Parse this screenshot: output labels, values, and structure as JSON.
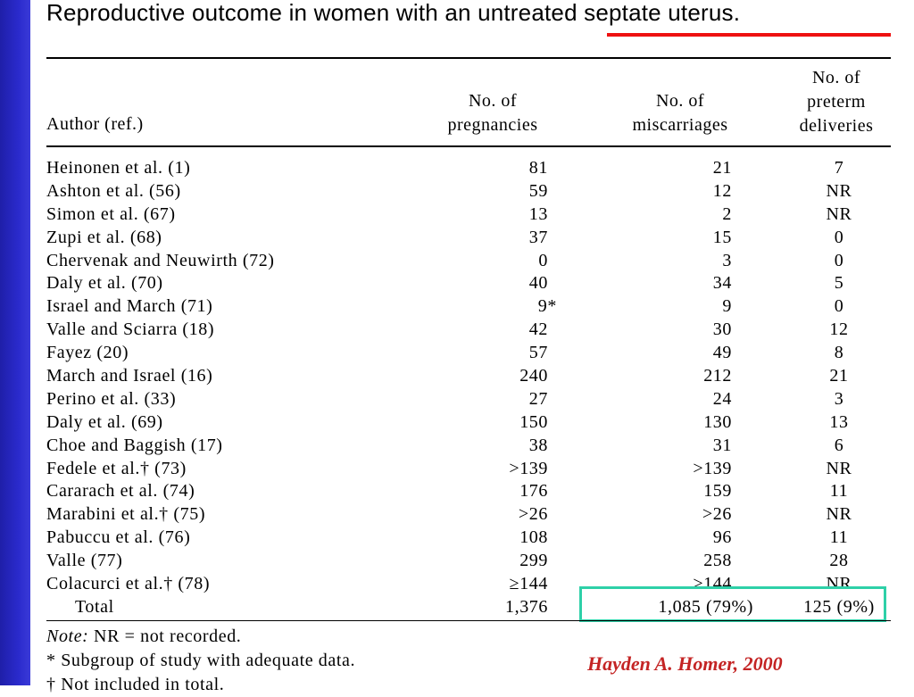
{
  "title": "Reproductive outcome in women with an untreated septate uterus.",
  "headers": {
    "author": "Author (ref.)",
    "pregnancies_line1": "No. of",
    "pregnancies_line2": "pregnancies",
    "miscarriages_line1": "No. of",
    "miscarriages_line2": "miscarriages",
    "preterm_line1": "No. of",
    "preterm_line2": "preterm",
    "preterm_line3": "deliveries"
  },
  "rows": [
    {
      "author": "Heinonen et al. (1)",
      "pregnancies": "81",
      "miscarriages": "21",
      "preterm": "7"
    },
    {
      "author": "Ashton et al. (56)",
      "pregnancies": "59",
      "miscarriages": "12",
      "preterm": "NR"
    },
    {
      "author": "Simon et al. (67)",
      "pregnancies": "13",
      "miscarriages": "2",
      "preterm": "NR"
    },
    {
      "author": "Zupi et al. (68)",
      "pregnancies": "37",
      "miscarriages": "15",
      "preterm": "0"
    },
    {
      "author": "Chervenak and Neuwirth (72)",
      "pregnancies": "0",
      "miscarriages": "3",
      "preterm": "0"
    },
    {
      "author": "Daly et al. (70)",
      "pregnancies": "40",
      "miscarriages": "34",
      "preterm": "5"
    },
    {
      "author": "Israel and March (71)",
      "pregnancies": "9*",
      "miscarriages": "9",
      "preterm": "0"
    },
    {
      "author": "Valle and Sciarra (18)",
      "pregnancies": "42",
      "miscarriages": "30",
      "preterm": "12"
    },
    {
      "author": "Fayez (20)",
      "pregnancies": "57",
      "miscarriages": "49",
      "preterm": "8"
    },
    {
      "author": "March and Israel (16)",
      "pregnancies": "240",
      "miscarriages": "212",
      "preterm": "21"
    },
    {
      "author": "Perino et al. (33)",
      "pregnancies": "27",
      "miscarriages": "24",
      "preterm": "3"
    },
    {
      "author": "Daly et al. (69)",
      "pregnancies": "150",
      "miscarriages": "130",
      "preterm": "13"
    },
    {
      "author": "Choe and Baggish (17)",
      "pregnancies": "38",
      "miscarriages": "31",
      "preterm": "6"
    },
    {
      "author": "Fedele et al.† (73)",
      "pregnancies": ">139",
      "miscarriages": ">139",
      "preterm": "NR"
    },
    {
      "author": "Cararach et al. (74)",
      "pregnancies": "176",
      "miscarriages": "159",
      "preterm": "11"
    },
    {
      "author": "Marabini et al.† (75)",
      "pregnancies": ">26",
      "miscarriages": ">26",
      "preterm": "NR"
    },
    {
      "author": "Pabuccu et al. (76)",
      "pregnancies": "108",
      "miscarriages": "96",
      "preterm": "11"
    },
    {
      "author": "Valle (77)",
      "pregnancies": "299",
      "miscarriages": "258",
      "preterm": "28"
    },
    {
      "author": "Colacurci et al.† (78)",
      "pregnancies": "≥144",
      "miscarriages": "≥144",
      "preterm": "NR"
    }
  ],
  "total": {
    "label": "Total",
    "pregnancies": "1,376",
    "miscarriages": "1,085 (79%)",
    "preterm": "125 (9%)"
  },
  "notes": {
    "note_label": "Note:",
    "note_text": " NR = not recorded.",
    "asterisk": "* Subgroup of study with adequate data.",
    "dagger": "† Not included in total."
  },
  "citation": "Hayden A. Homer, 2000",
  "colors": {
    "side_bar": "#2a2acc",
    "accent_line": "#ee1111",
    "highlight_box": "#2ed0a8",
    "citation": "#c42424"
  }
}
